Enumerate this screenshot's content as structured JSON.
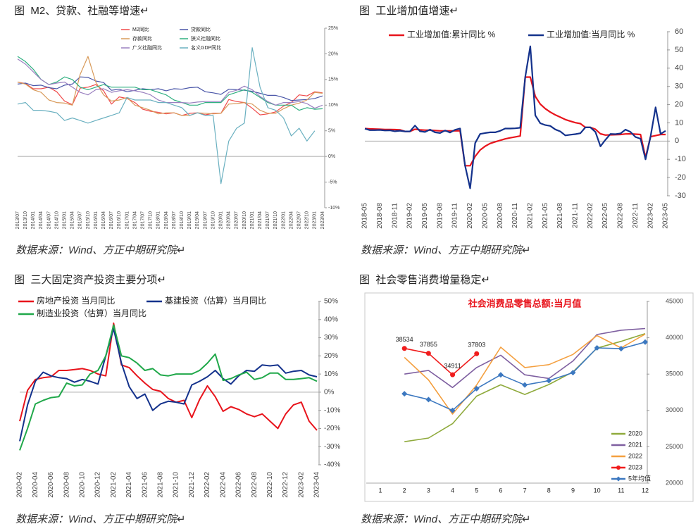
{
  "captions": [
    "图  M2、贷款、社融等增速↵",
    "图  工业增加值增速↵",
    "图  三大固定资产投资主要分项↵",
    "图  社会零售消费增量稳定↵"
  ],
  "sources": [
    "数据来源：Wind、方正中期研究院↵",
    "数据来源：Wind、方正中期研究院↵",
    "数据来源：Wind、方正中期研究院↵",
    "数据来源：Wind、方正中期研究院↵"
  ],
  "chart_data": [
    {
      "type": "line",
      "categories": [
        "2013/07",
        "2013/10",
        "2014/01",
        "2014/04",
        "2014/07",
        "2014/10",
        "2015/01",
        "2015/04",
        "2015/07",
        "2015/10",
        "2016/01",
        "2016/04",
        "2016/07",
        "2016/10",
        "2017/01",
        "2017/04",
        "2017/07",
        "2017/10",
        "2018/01",
        "2018/04",
        "2018/07",
        "2018/10",
        "2019/01",
        "2019/04",
        "2019/07",
        "2019/10",
        "2020/01",
        "2020/04",
        "2020/07",
        "2020/10",
        "2021/01",
        "2021/04",
        "2021/07",
        "2021/10",
        "2022/01",
        "2022/04",
        "2022/07",
        "2022/10",
        "2023/01",
        "2023/04"
      ],
      "series": [
        {
          "name": "M2同比",
          "color": "#f04a4a",
          "values": [
            14.5,
            14.2,
            13.2,
            13.2,
            13.5,
            12.6,
            10.8,
            10.1,
            13.3,
            13.5,
            14.0,
            12.8,
            10.2,
            11.6,
            11.3,
            10.5,
            9.2,
            8.8,
            8.6,
            8.3,
            8.5,
            8.0,
            8.4,
            8.5,
            8.1,
            8.4,
            8.4,
            11.1,
            10.7,
            10.5,
            9.4,
            8.1,
            8.3,
            8.7,
            9.8,
            10.5,
            12.0,
            11.8,
            12.6,
            12.4
          ]
        },
        {
          "name": "贷款同比",
          "color": "#4a56a8",
          "values": [
            14.1,
            14.3,
            13.8,
            13.9,
            13.4,
            13.2,
            13.9,
            14.1,
            15.5,
            15.4,
            14.7,
            14.4,
            12.9,
            13.1,
            12.6,
            12.9,
            13.2,
            13.0,
            13.2,
            12.8,
            13.2,
            13.1,
            13.4,
            13.5,
            12.6,
            12.4,
            12.1,
            13.1,
            13.0,
            12.9,
            12.7,
            12.3,
            11.9,
            11.9,
            11.5,
            10.9,
            11.0,
            11.1,
            11.3,
            11.8
          ]
        },
        {
          "name": "存款同比",
          "color": "#d89a5a",
          "values": [
            14.5,
            14.1,
            13.0,
            12.5,
            11.0,
            10.5,
            10.4,
            10.0,
            16.0,
            19.5,
            14.5,
            12.0,
            10.8,
            11.0,
            11.5,
            10.0,
            9.5,
            9.0,
            8.3,
            8.5,
            8.5,
            8.0,
            8.0,
            8.5,
            8.4,
            8.3,
            8.4,
            10.2,
            10.3,
            10.5,
            10.2,
            9.0,
            8.4,
            8.4,
            9.3,
            10.0,
            10.4,
            11.0,
            12.5,
            12.3
          ]
        },
        {
          "name": "狭义社融同比",
          "color": "#30b080",
          "values": [
            19.5,
            18.5,
            17.0,
            15.0,
            14.0,
            14.5,
            15.5,
            15.0,
            13.5,
            13.0,
            13.5,
            14.0,
            13.5,
            13.5,
            13.5,
            13.5,
            13.0,
            13.0,
            12.5,
            12.0,
            11.0,
            10.5,
            10.0,
            10.0,
            10.5,
            10.5,
            10.5,
            12.0,
            12.5,
            13.0,
            12.5,
            11.5,
            10.5,
            10.0,
            10.0,
            10.0,
            9.0,
            9.5,
            9.2,
            9.3
          ]
        },
        {
          "name": "广义社融同比",
          "color": "#9a80c0",
          "values": [
            19.0,
            18.0,
            16.5,
            15.0,
            14.0,
            14.3,
            14.5,
            13.5,
            12.5,
            12.0,
            13.0,
            13.2,
            12.5,
            12.8,
            13.0,
            12.8,
            12.5,
            12.0,
            11.0,
            10.5,
            10.5,
            10.5,
            10.4,
            10.6,
            10.7,
            10.7,
            10.7,
            12.5,
            12.9,
            13.7,
            13.0,
            11.7,
            10.7,
            10.0,
            10.5,
            10.5,
            10.7,
            10.3,
            9.4,
            10.0
          ]
        },
        {
          "name": "名义GDP同比",
          "color": "#6ab0c0",
          "values": [
            10.2,
            10.5,
            9.0,
            9.0,
            8.8,
            8.5,
            7.0,
            7.5,
            7.0,
            6.5,
            7.0,
            7.5,
            8.0,
            8.5,
            11.5,
            11.0,
            11.0,
            11.0,
            10.5,
            10.5,
            10.0,
            9.5,
            8.0,
            8.5,
            8.0,
            8.0,
            -5.3,
            3.0,
            5.5,
            6.5,
            21.2,
            13.5,
            9.5,
            9.0,
            7.5,
            4.0,
            5.5,
            3.0,
            5.0,
            null
          ]
        }
      ],
      "ylim": [
        -10,
        25
      ],
      "yticks": [
        {
          "value": -10,
          "label": "-10%"
        },
        {
          "value": -5,
          "label": "-5%"
        },
        {
          "value": 0,
          "label": "0%"
        },
        {
          "value": 5,
          "label": "5%"
        },
        {
          "value": 10,
          "label": "10%"
        },
        {
          "value": 15,
          "label": "15%"
        },
        {
          "value": 20,
          "label": "20%"
        },
        {
          "value": 25,
          "label": "25%"
        }
      ],
      "grid": false
    },
    {
      "type": "line",
      "categories": [
        "2018-05",
        null,
        null,
        "2018-08",
        null,
        null,
        "2018-11",
        null,
        null,
        "2019-02",
        null,
        null,
        "2019-05",
        null,
        null,
        "2019-08",
        null,
        null,
        "2019-11",
        null,
        null,
        "2020-02",
        null,
        null,
        "2020-05",
        null,
        null,
        "2020-08",
        null,
        null,
        "2020-11",
        null,
        null,
        "2021-02",
        null,
        null,
        "2021-05",
        null,
        null,
        "2021-08",
        null,
        null,
        "2021-11",
        null,
        null,
        "2022-02",
        null,
        null,
        "2022-05",
        null,
        null,
        "2022-08",
        null,
        null,
        "2022-11",
        null,
        null,
        "2023-02",
        null,
        null,
        "2023-05"
      ],
      "series": [
        {
          "name": "工业增加值:累计同比 %",
          "color": "#e8141c",
          "values": [
            6.9,
            6.7,
            6.6,
            6.5,
            6.4,
            6.4,
            6.3,
            6.2,
            5.3,
            5.3,
            6.5,
            6.2,
            6.0,
            6.0,
            5.8,
            5.6,
            5.6,
            5.6,
            5.6,
            5.7,
            -13.5,
            -13.5,
            -8.4,
            -4.9,
            -2.8,
            -1.3,
            -0.4,
            0.4,
            1.2,
            1.8,
            2.3,
            2.8,
            35.1,
            35.1,
            24.5,
            20.3,
            17.8,
            15.9,
            14.4,
            13.1,
            11.8,
            10.9,
            10.1,
            9.6,
            7.5,
            7.5,
            6.5,
            4.0,
            3.3,
            3.4,
            3.5,
            3.6,
            3.9,
            4.0,
            3.8,
            3.6,
            -9.0,
            2.4,
            3.0,
            3.6,
            3.6
          ]
        },
        {
          "name": "工业增加值:当月同比 %",
          "color": "#14328c",
          "values": [
            6.8,
            6.0,
            6.0,
            6.1,
            5.8,
            5.9,
            5.4,
            5.7,
            5.3,
            5.3,
            8.5,
            5.4,
            5.0,
            6.3,
            4.8,
            4.4,
            5.8,
            4.7,
            6.2,
            6.9,
            -13.5,
            -25.9,
            -1.1,
            3.9,
            4.4,
            4.8,
            4.8,
            5.6,
            6.9,
            6.9,
            7.0,
            7.3,
            35.1,
            52.0,
            14.1,
            9.8,
            8.8,
            8.3,
            6.4,
            5.3,
            3.1,
            3.5,
            3.8,
            4.3,
            7.5,
            7.5,
            5.0,
            -2.9,
            0.7,
            3.9,
            3.8,
            4.2,
            6.3,
            5.0,
            2.2,
            1.3,
            -10.0,
            2.4,
            18.5,
            3.9,
            5.6
          ]
        }
      ],
      "ylim": [
        -30,
        60
      ],
      "yticks": [
        -30,
        -20,
        -10,
        0,
        10,
        20,
        30,
        40,
        50,
        60
      ],
      "grid": false
    },
    {
      "type": "line",
      "categories": [
        "2020-02",
        null,
        "2020-04",
        null,
        "2020-06",
        null,
        "2020-08",
        null,
        "2020-10",
        null,
        "2020-12",
        null,
        "2021-02",
        null,
        "2021-04",
        null,
        "2021-06",
        null,
        "2021-08",
        null,
        "2021-10",
        null,
        "2021-12",
        null,
        "2022-02",
        null,
        "2022-04",
        null,
        "2022-06",
        null,
        "2022-08",
        null,
        "2022-10",
        null,
        "2022-12",
        null,
        "2023-02",
        null,
        "2023-04"
      ],
      "series": [
        {
          "name": "房地产投资 当月同比",
          "color": "#e8141c",
          "values": [
            -16,
            1,
            7,
            8,
            8.5,
            12,
            12,
            12.5,
            13,
            12,
            10,
            9,
            38,
            15,
            13.5,
            9,
            5,
            1.5,
            0.5,
            -3.5,
            -5.5,
            -4.5,
            -14,
            -4,
            3.5,
            -2.5,
            -10.5,
            -8,
            -9.5,
            -12,
            -13.5,
            -12,
            -16,
            -20,
            -12,
            -7,
            -5.5,
            -16,
            -21
          ]
        },
        {
          "name": "基建投资（估算）当月同比",
          "color": "#14328c",
          "values": [
            -27,
            -7,
            6,
            11,
            9,
            8,
            7.5,
            5.5,
            7,
            6,
            4.5,
            20,
            35,
            16,
            3,
            -3.5,
            -1,
            -10,
            -6.5,
            -5,
            -5.5,
            -6.5,
            4,
            6,
            8.5,
            12,
            7.5,
            4.5,
            9,
            12,
            11.5,
            15,
            14.5,
            15,
            10.5,
            11.5,
            12,
            9.5,
            8.5
          ]
        },
        {
          "name": "制造业投资（估算）当月同比",
          "color": "#20a84a",
          "values": [
            -32,
            -20,
            -6.5,
            -4.5,
            -3,
            -2.5,
            5,
            3.5,
            4,
            10,
            12,
            20,
            37,
            20,
            19,
            16,
            12,
            13,
            9.5,
            9,
            10,
            10,
            10,
            12,
            16,
            21,
            6.5,
            7.5,
            9.5,
            11,
            7,
            8,
            10.5,
            10.5,
            7,
            7,
            7.5,
            8,
            6
          ]
        }
      ],
      "ylim": [
        -40,
        50
      ],
      "yticks": [
        {
          "value": -40,
          "label": "-40%"
        },
        {
          "value": -30,
          "label": "-30%"
        },
        {
          "value": -20,
          "label": "-20%"
        },
        {
          "value": -10,
          "label": "-10%"
        },
        {
          "value": 0,
          "label": "0%"
        },
        {
          "value": 10,
          "label": "10%"
        },
        {
          "value": 20,
          "label": "20%"
        },
        {
          "value": 30,
          "label": "30%"
        },
        {
          "value": 40,
          "label": "40%"
        },
        {
          "value": 50,
          "label": "50%"
        }
      ],
      "grid": false
    },
    {
      "type": "line",
      "title": "社会消费品零售总额:当月值",
      "categories": [
        "1",
        "2",
        "3",
        "4",
        "5",
        "6",
        "7",
        "8",
        "9",
        "10",
        "11",
        "12"
      ],
      "series": [
        {
          "name": "2020",
          "color": "#8faa3c",
          "values": [
            null,
            25700,
            26200,
            28180,
            31970,
            33530,
            32200,
            33570,
            35300,
            38580,
            39510,
            40570
          ]
        },
        {
          "name": "2021",
          "color": "#7e5fa0",
          "values": [
            null,
            35000,
            35500,
            33150,
            35900,
            37600,
            34900,
            34400,
            36800,
            40450,
            41040,
            41270
          ]
        },
        {
          "name": "2022",
          "color": "#f4a040",
          "values": [
            null,
            37300,
            34200,
            29500,
            33500,
            38700,
            35900,
            36300,
            37700,
            40300,
            38600,
            40500
          ]
        },
        {
          "name": "2023",
          "color": "#f01c1c",
          "marker": "circle",
          "show_values": true,
          "values": [
            null,
            38534,
            37855,
            34911,
            37803,
            null,
            null,
            null,
            null,
            null,
            null,
            null
          ]
        },
        {
          "name": "5年均值",
          "color": "#3c78c0",
          "marker": "diamond",
          "values": [
            null,
            32300,
            31500,
            30000,
            33000,
            34900,
            33500,
            34100,
            35200,
            38600,
            38500,
            39400
          ]
        }
      ],
      "ylim": [
        20000,
        45000
      ],
      "yticks": [
        20000,
        25000,
        30000,
        35000,
        40000,
        45000
      ],
      "grid": false
    }
  ]
}
